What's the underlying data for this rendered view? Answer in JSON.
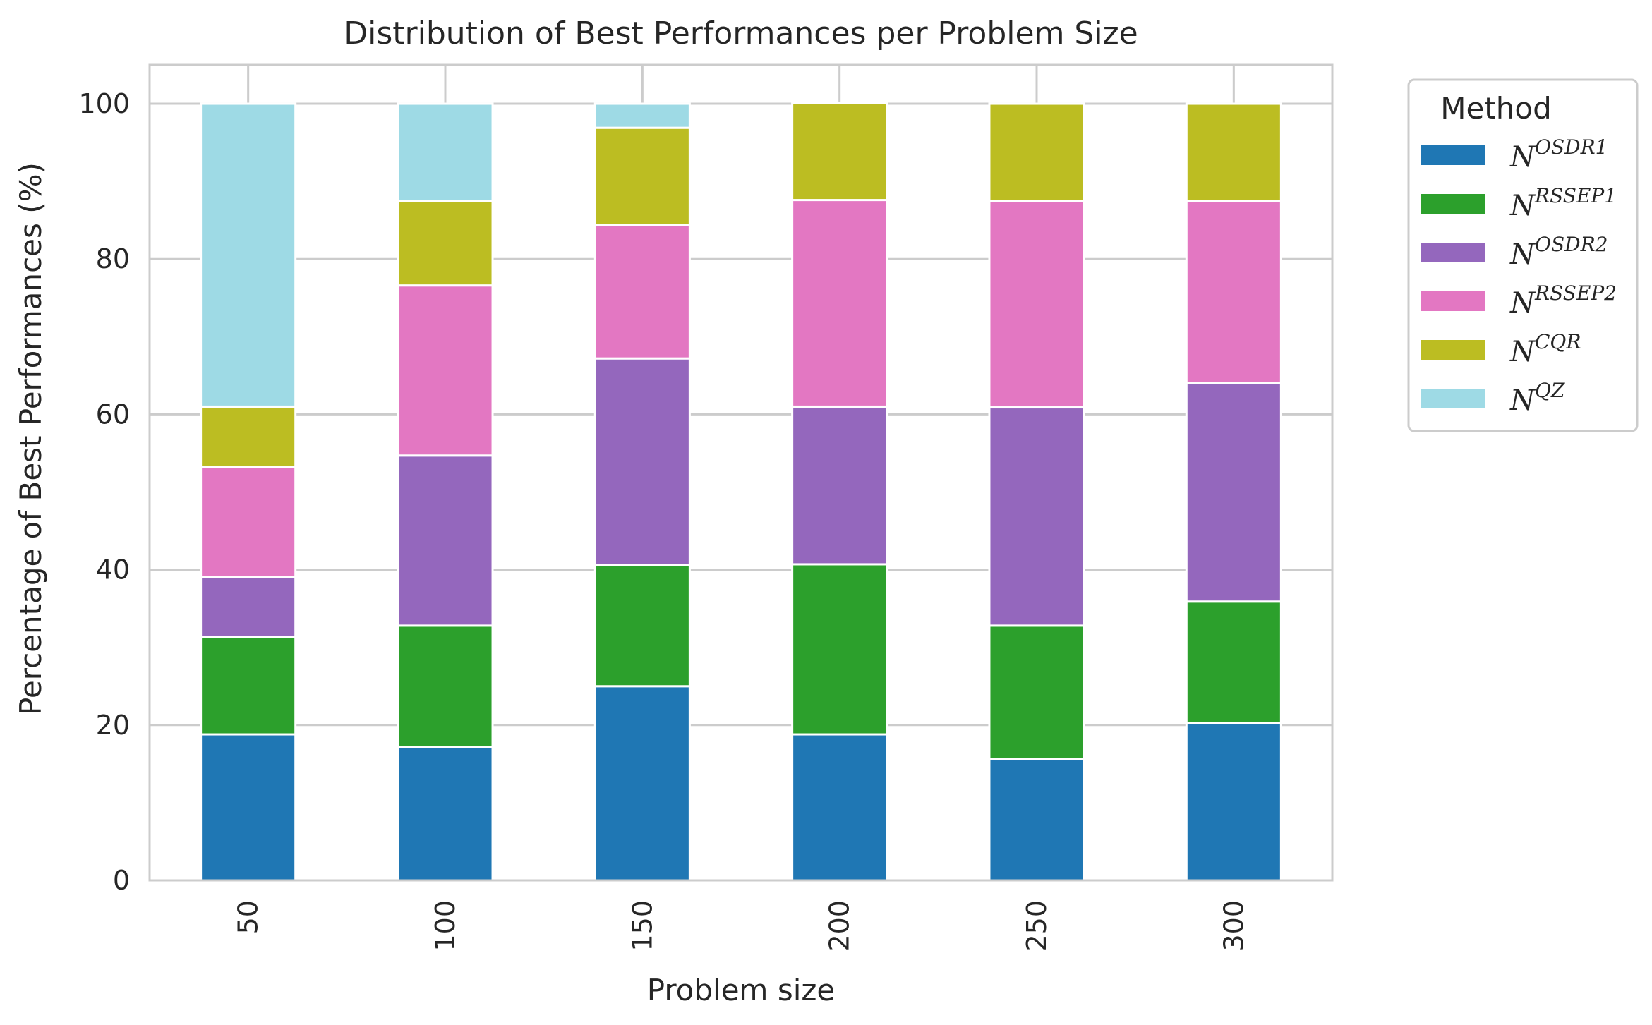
{
  "chart_data": {
    "type": "bar",
    "stacked": true,
    "title": "Distribution of Best Performances per Problem Size",
    "xlabel": "Problem size",
    "ylabel": "Percentage of Best Performances (%)",
    "categories": [
      "50",
      "100",
      "150",
      "200",
      "250",
      "300"
    ],
    "ylim": [
      0,
      105
    ],
    "yticks": [
      "0",
      "20",
      "40",
      "60",
      "80",
      "100"
    ],
    "grid": true,
    "legend": {
      "title": "Method",
      "placement": "outside-top-right"
    },
    "series": [
      {
        "name": "N^OSDR1",
        "base": "N",
        "sup": "OSDR1",
        "color": "#1f77b4",
        "values": [
          18.8,
          17.2,
          25.0,
          18.8,
          15.6,
          20.3
        ]
      },
      {
        "name": "N^RSSEP1",
        "base": "N",
        "sup": "RSSEP1",
        "color": "#2ca02c",
        "values": [
          12.5,
          15.6,
          15.6,
          21.9,
          17.2,
          15.6
        ]
      },
      {
        "name": "N^OSDR2",
        "base": "N",
        "sup": "OSDR2",
        "color": "#9467bd",
        "values": [
          7.8,
          21.9,
          26.6,
          20.3,
          28.1,
          28.1
        ]
      },
      {
        "name": "N^RSSEP2",
        "base": "N",
        "sup": "RSSEP2",
        "color": "#e377c2",
        "values": [
          14.1,
          21.9,
          17.2,
          26.6,
          26.6,
          23.5
        ]
      },
      {
        "name": "N^CQR",
        "base": "N",
        "sup": "CQR",
        "color": "#bcbd22",
        "values": [
          7.8,
          10.9,
          12.5,
          12.5,
          12.5,
          12.5
        ]
      },
      {
        "name": "N^QZ",
        "base": "N",
        "sup": "QZ",
        "color": "#9edae5",
        "values": [
          39.0,
          12.5,
          3.1,
          0,
          0,
          0
        ]
      }
    ]
  }
}
